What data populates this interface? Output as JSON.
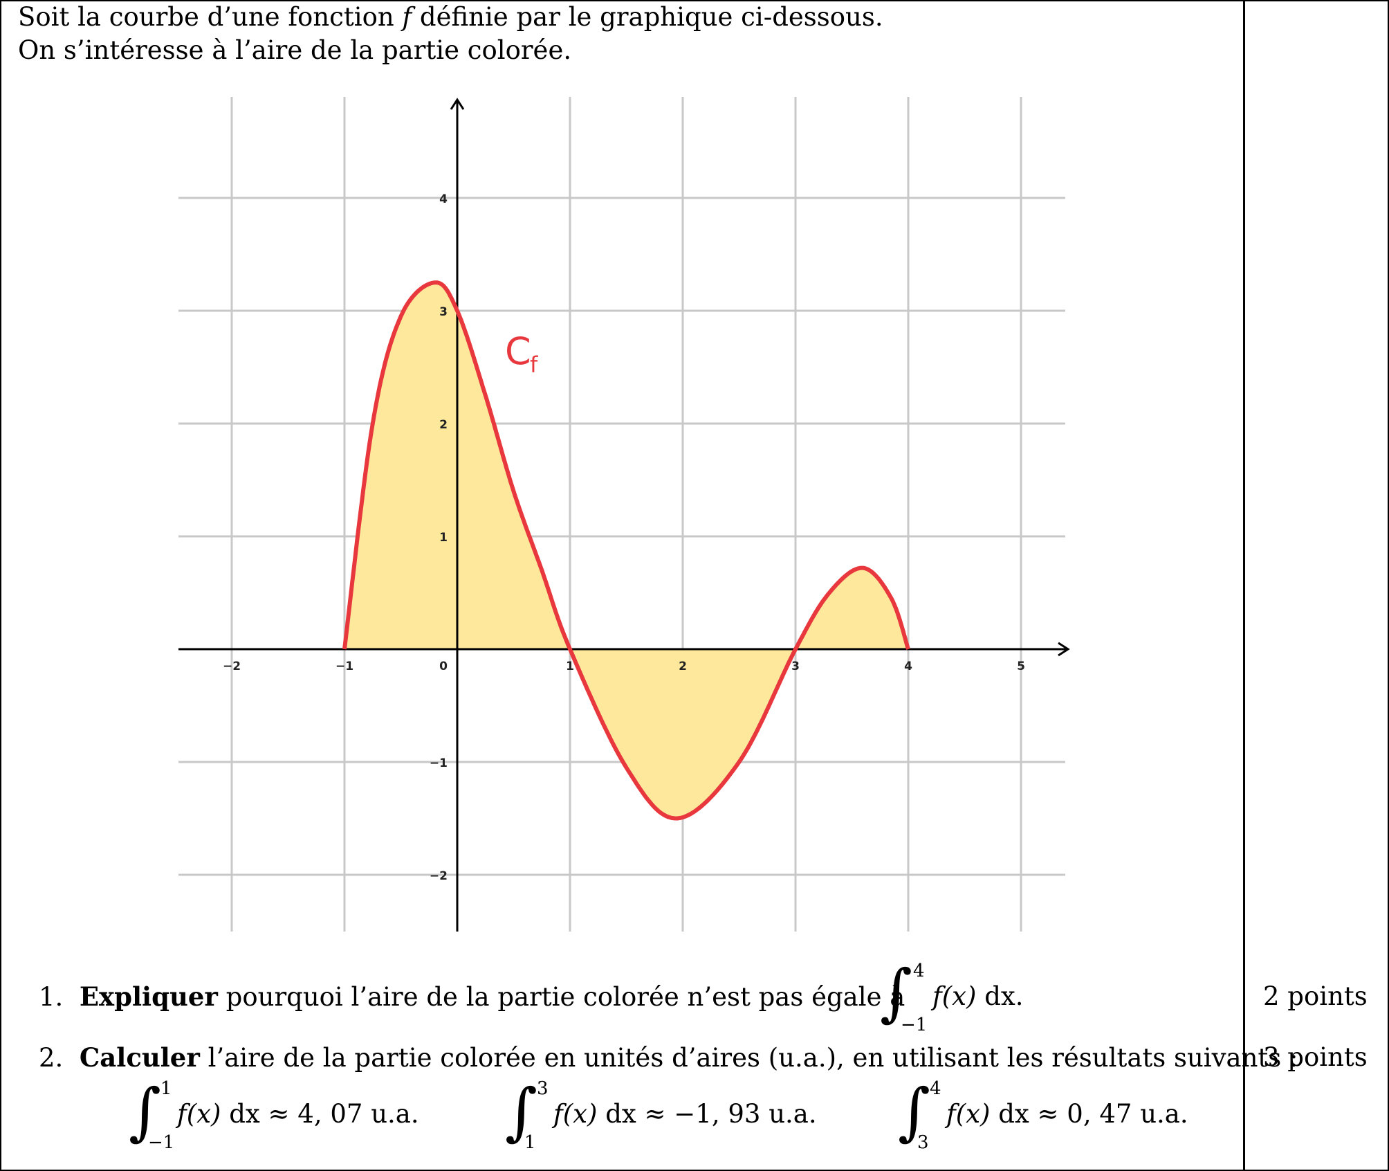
{
  "intro": {
    "line1_a": "Soit la courbe d’une fonction ",
    "line1_f": "f",
    "line1_b": " définie par le graphique ci-dessous.",
    "line2": "On s’intéresse à l’aire de la partie colorée."
  },
  "chart_data": {
    "type": "line",
    "curve_label": "C",
    "curve_label_sub": "f",
    "x_ticks": [
      "−2",
      "−1",
      "0",
      "1",
      "2",
      "3",
      "4",
      "5"
    ],
    "y_ticks": [
      "4",
      "3",
      "2",
      "1",
      "−1",
      "−2"
    ],
    "xlim": [
      -2.45,
      5.4
    ],
    "ylim": [
      -2.5,
      4.9
    ],
    "grid": true,
    "series": [
      {
        "x": [
          -1,
          -0.75,
          -0.5,
          -0.2,
          0,
          0.25,
          0.5,
          0.75,
          1,
          1.5,
          1.95,
          2.5,
          3,
          3.3,
          3.6,
          3.85,
          4
        ],
        "y": [
          0,
          2.0,
          2.95,
          3.25,
          3.0,
          2.25,
          1.4,
          0.7,
          0,
          -1.05,
          -1.5,
          -1.0,
          0,
          0.5,
          0.72,
          0.45,
          0
        ]
      }
    ],
    "shaded_between": [
      -1,
      4
    ],
    "colors": {
      "curve": "#e8383d",
      "fill": "#fde89b",
      "grid": "#c8c8c8",
      "axis": "#000000"
    }
  },
  "questions": [
    {
      "num": "1.",
      "bold": "Expliquer",
      "text": " pourquoi l’aire de la partie colorée n’est pas égale à ",
      "int_lower": "−1",
      "int_upper": "4",
      "int_body": "f(x)",
      "int_dx": " dx.",
      "points": "2 points"
    },
    {
      "num": "2.",
      "bold": "Calculer",
      "text": " l’aire de la partie colorée en unités d’aires (u.a.), en utilisant les résultats suivants :",
      "points": "3 points"
    }
  ],
  "results": [
    {
      "lower": "−1",
      "upper": "1",
      "body": "f(x)",
      "dx": " dx",
      "value": " ≈ 4, 07 u.a."
    },
    {
      "lower": "1",
      "upper": "3",
      "body": "f(x)",
      "dx": " dx",
      "value": " ≈ −1, 93 u.a."
    },
    {
      "lower": "3",
      "upper": "4",
      "body": "f(x)",
      "dx": " dx",
      "value": " ≈ 0, 47 u.a."
    }
  ]
}
